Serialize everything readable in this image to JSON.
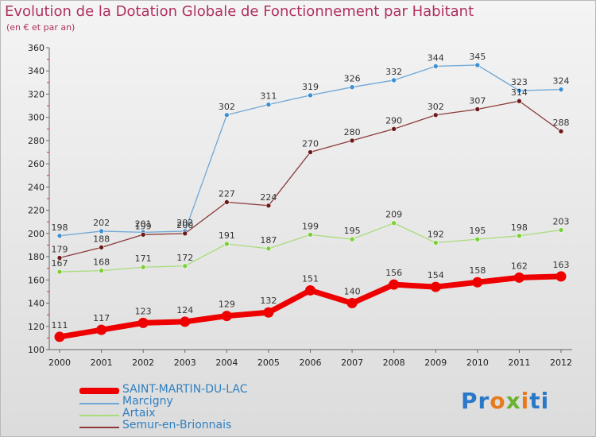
{
  "header": {
    "title": "Evolution de la Dotation Globale de Fonctionnement par Habitant",
    "subtitle": "(en € et par an)"
  },
  "logo": {
    "text": "Proxiti",
    "colors": [
      "#2a78c8",
      "#e87a1e",
      "#69b32f"
    ]
  },
  "chart_data": {
    "type": "line",
    "title": "Evolution de la Dotation Globale de Fonctionnement par Habitant",
    "subtitle": "(en € et par an)",
    "xlabel": "",
    "ylabel": "",
    "x": [
      "2000",
      "2001",
      "2002",
      "2003",
      "2004",
      "2005",
      "2006",
      "2007",
      "2008",
      "2009",
      "2010",
      "2011",
      "2012"
    ],
    "ylim": [
      100,
      360
    ],
    "yticks": [
      100,
      120,
      140,
      160,
      180,
      200,
      220,
      240,
      260,
      280,
      300,
      320,
      340,
      360
    ],
    "grid": false,
    "legend_position": "bottom-left",
    "series": [
      {
        "name": "SAINT-MARTIN-DU-LAC",
        "color": "#ee0000",
        "marker_color": "#ee0000",
        "emphasis": true,
        "values": [
          111,
          117,
          123,
          124,
          129,
          132,
          151,
          140,
          156,
          154,
          158,
          162,
          163
        ]
      },
      {
        "name": "Marcigny",
        "color": "#6fa7d6",
        "marker_color": "#3d8fd0",
        "values": [
          198,
          202,
          201,
          202,
          302,
          311,
          319,
          326,
          332,
          344,
          345,
          323,
          324
        ]
      },
      {
        "name": "Artaix",
        "color": "#a9dc7a",
        "marker_color": "#7bd03a",
        "values": [
          167,
          168,
          171,
          172,
          191,
          187,
          199,
          195,
          209,
          192,
          195,
          198,
          203
        ]
      },
      {
        "name": "Semur-en-Brionnais",
        "color": "#8b3a3a",
        "marker_color": "#6b1a1a",
        "values": [
          179,
          188,
          199,
          200,
          227,
          224,
          270,
          280,
          290,
          302,
          307,
          314,
          288
        ]
      }
    ]
  }
}
